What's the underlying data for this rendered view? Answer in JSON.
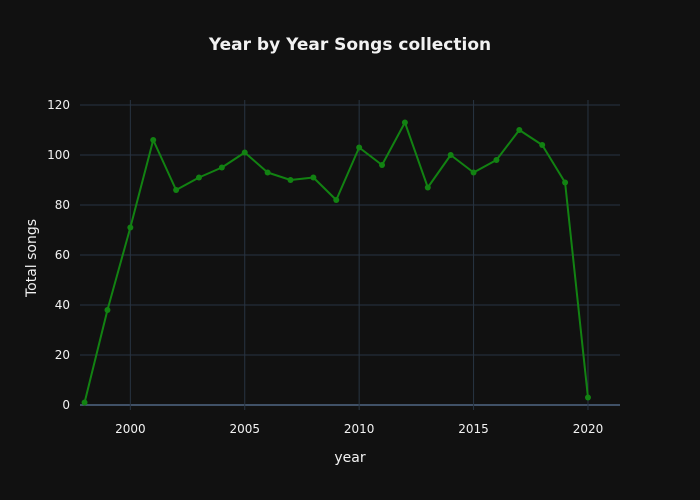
{
  "chart_data": {
    "type": "line",
    "title": "Year by Year Songs collection",
    "xlabel": "year",
    "ylabel": "Total songs",
    "xlim": [
      1997.8,
      2021.4
    ],
    "ylim": [
      -2,
      122
    ],
    "xticks": [
      2000,
      2005,
      2010,
      2015,
      2020
    ],
    "yticks": [
      0,
      20,
      40,
      60,
      80,
      100,
      120
    ],
    "grid": true,
    "legend": "none",
    "series": [
      {
        "color": "#128212",
        "x": [
          1998,
          1999,
          2000,
          2001,
          2002,
          2003,
          2004,
          2005,
          2006,
          2007,
          2008,
          2009,
          2010,
          2011,
          2012,
          2013,
          2014,
          2015,
          2016,
          2017,
          2018,
          2019,
          2020
        ],
        "y": [
          1,
          38,
          71,
          106,
          86,
          91,
          95,
          101,
          93,
          90,
          91,
          82,
          103,
          96,
          113,
          87,
          100,
          93,
          98,
          110,
          104,
          89,
          3
        ]
      }
    ]
  },
  "colors": {
    "background": "#111111",
    "grid": "#283442",
    "zero_line": "#506784",
    "text": "#f2f2f2",
    "series": "#128212"
  }
}
